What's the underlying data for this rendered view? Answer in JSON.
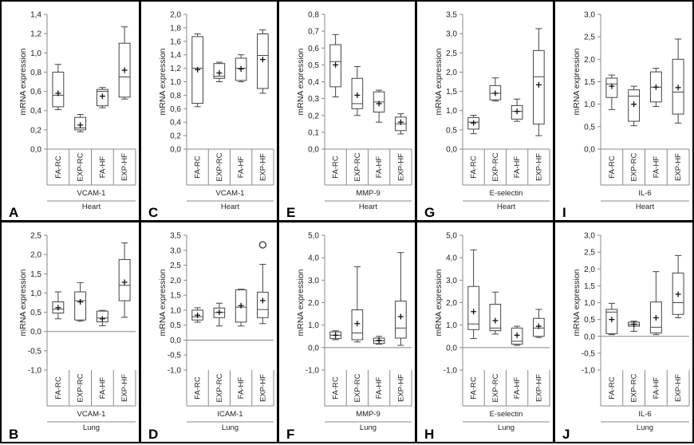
{
  "chart_data": [
    {
      "id": "A",
      "type": "boxplot",
      "letter": "A",
      "ylabel": "mRNA expression",
      "gene": "VCAM-1",
      "tissue": "Heart",
      "ylim": [
        0,
        1.4
      ],
      "yticks": [
        "0,0",
        "0,2",
        "0,4",
        "0,6",
        "0,8",
        "1,0",
        "1,2",
        "1,4"
      ],
      "ytick_values": [
        0,
        0.2,
        0.4,
        0.6,
        0.8,
        1.0,
        1.2,
        1.4
      ],
      "categories": [
        "FA-RC",
        "EXP-RC",
        "FA-HF",
        "EXP-HF"
      ],
      "boxes": [
        {
          "min": 0.41,
          "q1": 0.44,
          "median": 0.56,
          "q3": 0.8,
          "max": 0.88,
          "mean": 0.58,
          "outliers": []
        },
        {
          "min": 0.18,
          "q1": 0.2,
          "median": 0.22,
          "q3": 0.33,
          "max": 0.36,
          "mean": 0.25,
          "outliers": []
        },
        {
          "min": 0.43,
          "q1": 0.45,
          "median": 0.6,
          "q3": 0.62,
          "max": 0.64,
          "mean": 0.55,
          "outliers": []
        },
        {
          "min": 0.52,
          "q1": 0.54,
          "median": 0.75,
          "q3": 1.1,
          "max": 1.27,
          "mean": 0.82,
          "outliers": []
        }
      ]
    },
    {
      "id": "B",
      "type": "boxplot",
      "letter": "B",
      "ylabel": "mRNA expression",
      "gene": "VCAM-1",
      "tissue": "Lung",
      "ylim": [
        -1,
        2.5
      ],
      "yticks": [
        "-1,0",
        "-0,5",
        "0,0",
        "0,5",
        "1,0",
        "1,5",
        "2,0",
        "2,5"
      ],
      "ytick_values": [
        -1,
        -0.5,
        0,
        0.5,
        1,
        1.5,
        2,
        2.5
      ],
      "categories": [
        "FA-RC",
        "EXP-RC",
        "FA-HF",
        "EXP-HF"
      ],
      "boxes": [
        {
          "min": 0.33,
          "q1": 0.48,
          "median": 0.58,
          "q3": 0.77,
          "max": 1.03,
          "mean": 0.62,
          "outliers": []
        },
        {
          "min": 0.27,
          "q1": 0.3,
          "median": 0.8,
          "q3": 1.03,
          "max": 1.27,
          "mean": 0.77,
          "outliers": []
        },
        {
          "min": 0.15,
          "q1": 0.25,
          "median": 0.35,
          "q3": 0.53,
          "max": 0.55,
          "mean": 0.33,
          "outliers": []
        },
        {
          "min": 0.37,
          "q1": 0.8,
          "median": 1.2,
          "q3": 1.87,
          "max": 2.3,
          "mean": 1.28,
          "outliers": []
        }
      ]
    },
    {
      "id": "C",
      "type": "boxplot",
      "letter": "C",
      "ylabel": "mRNA expression",
      "gene": "VCAM-1",
      "tissue": "Heart",
      "ylim": [
        0,
        2.0
      ],
      "yticks": [
        "0,0",
        "0,2",
        "0,4",
        "0,6",
        "0,8",
        "1,0",
        "1,2",
        "1,4",
        "1,6",
        "1,8",
        "2,0"
      ],
      "ytick_values": [
        0,
        0.2,
        0.4,
        0.6,
        0.8,
        1.0,
        1.2,
        1.4,
        1.6,
        1.8,
        2.0
      ],
      "categories": [
        "FA-RC",
        "EXP-RC",
        "FA-HF",
        "EXP-HF"
      ],
      "boxes": [
        {
          "min": 0.63,
          "q1": 0.68,
          "median": 1.2,
          "q3": 1.67,
          "max": 1.71,
          "mean": 1.18,
          "outliers": []
        },
        {
          "min": 1.0,
          "q1": 1.05,
          "median": 1.08,
          "q3": 1.27,
          "max": 1.29,
          "mean": 1.13,
          "outliers": []
        },
        {
          "min": 1.0,
          "q1": 1.02,
          "median": 1.2,
          "q3": 1.35,
          "max": 1.4,
          "mean": 1.19,
          "outliers": []
        },
        {
          "min": 0.83,
          "q1": 0.9,
          "median": 1.39,
          "q3": 1.71,
          "max": 1.77,
          "mean": 1.33,
          "outliers": []
        }
      ]
    },
    {
      "id": "D",
      "type": "boxplot",
      "letter": "D",
      "ylabel": "mRNA expression",
      "gene": "ICAM-1",
      "tissue": "Lung",
      "ylim": [
        -1,
        3.5
      ],
      "yticks": [
        "-1,0",
        "-0,5",
        "0,0",
        "0,5",
        "1,0",
        "1,5",
        "2,0",
        "2,5",
        "3,0",
        "3,5"
      ],
      "ytick_values": [
        -1,
        -0.5,
        0,
        0.5,
        1,
        1.5,
        2,
        2.5,
        3,
        3.5
      ],
      "categories": [
        "FA-RC",
        "EXP-RC",
        "FA-HF",
        "EXP-HF"
      ],
      "boxes": [
        {
          "min": 0.6,
          "q1": 0.67,
          "median": 0.78,
          "q3": 1.0,
          "max": 1.08,
          "mean": 0.83,
          "outliers": []
        },
        {
          "min": 0.47,
          "q1": 0.75,
          "median": 0.92,
          "q3": 1.07,
          "max": 1.23,
          "mean": 0.93,
          "outliers": []
        },
        {
          "min": 0.47,
          "q1": 0.6,
          "median": 1.1,
          "q3": 1.68,
          "max": 1.7,
          "mean": 1.15,
          "outliers": []
        },
        {
          "min": 0.55,
          "q1": 0.75,
          "median": 1.02,
          "q3": 1.6,
          "max": 2.53,
          "mean": 1.32,
          "outliers": [
            3.18
          ]
        }
      ]
    },
    {
      "id": "E",
      "type": "boxplot",
      "letter": "E",
      "ylabel": "mRNA expression",
      "gene": "MMP-9",
      "tissue": "Heart",
      "ylim": [
        0,
        0.8
      ],
      "yticks": [
        "0,0",
        "0,1",
        "0,2",
        "0,3",
        "0,4",
        "0,5",
        "0,6",
        "0,7",
        "0,8"
      ],
      "ytick_values": [
        0,
        0.1,
        0.2,
        0.3,
        0.4,
        0.5,
        0.6,
        0.7,
        0.8
      ],
      "categories": [
        "FA-RC",
        "EXP-RC",
        "FA-HF",
        "EXP-HF"
      ],
      "boxes": [
        {
          "min": 0.31,
          "q1": 0.37,
          "median": 0.52,
          "q3": 0.62,
          "max": 0.68,
          "mean": 0.5,
          "outliers": []
        },
        {
          "min": 0.2,
          "q1": 0.24,
          "median": 0.27,
          "q3": 0.42,
          "max": 0.49,
          "mean": 0.32,
          "outliers": []
        },
        {
          "min": 0.16,
          "q1": 0.22,
          "median": 0.28,
          "q3": 0.34,
          "max": 0.35,
          "mean": 0.27,
          "outliers": []
        },
        {
          "min": 0.09,
          "q1": 0.11,
          "median": 0.15,
          "q3": 0.19,
          "max": 0.21,
          "mean": 0.16,
          "outliers": []
        }
      ]
    },
    {
      "id": "F",
      "type": "boxplot",
      "letter": "F",
      "ylabel": "mRNA expression",
      "gene": "MMP-9",
      "tissue": "Lung",
      "ylim": [
        -1,
        5
      ],
      "yticks": [
        "-1,0",
        "0,0",
        "1,0",
        "2,0",
        "3,0",
        "4,0",
        "5,0"
      ],
      "ytick_values": [
        -1,
        0,
        1,
        2,
        3,
        4,
        5
      ],
      "categories": [
        "FA-RC",
        "EXP-RC",
        "FA-HF",
        "EXP-HF"
      ],
      "boxes": [
        {
          "min": 0.35,
          "q1": 0.4,
          "median": 0.55,
          "q3": 0.7,
          "max": 0.75,
          "mean": 0.55,
          "outliers": []
        },
        {
          "min": 0.25,
          "q1": 0.35,
          "median": 0.65,
          "q3": 1.68,
          "max": 3.6,
          "mean": 1.07,
          "outliers": []
        },
        {
          "min": 0.15,
          "q1": 0.18,
          "median": 0.3,
          "q3": 0.42,
          "max": 0.5,
          "mean": 0.32,
          "outliers": []
        },
        {
          "min": 0.1,
          "q1": 0.42,
          "median": 0.87,
          "q3": 2.07,
          "max": 4.23,
          "mean": 1.38,
          "outliers": []
        }
      ]
    },
    {
      "id": "G",
      "type": "boxplot",
      "letter": "G",
      "ylabel": "mRNA expression",
      "gene": "E-selectin",
      "tissue": "Heart",
      "ylim": [
        0,
        3.5
      ],
      "yticks": [
        "0,0",
        "0,5",
        "1,0",
        "1,5",
        "2,0",
        "2,5",
        "3,0",
        "3,5"
      ],
      "ytick_values": [
        0,
        0.5,
        1,
        1.5,
        2,
        2.5,
        3,
        3.5
      ],
      "categories": [
        "FA-RC",
        "EXP-RC",
        "FA-HF",
        "EXP-HF"
      ],
      "boxes": [
        {
          "min": 0.4,
          "q1": 0.52,
          "median": 0.7,
          "q3": 0.82,
          "max": 0.88,
          "mean": 0.68,
          "outliers": []
        },
        {
          "min": 1.25,
          "q1": 1.28,
          "median": 1.45,
          "q3": 1.65,
          "max": 1.85,
          "mean": 1.45,
          "outliers": []
        },
        {
          "min": 0.72,
          "q1": 0.78,
          "median": 0.98,
          "q3": 1.13,
          "max": 1.3,
          "mean": 0.98,
          "outliers": []
        },
        {
          "min": 0.35,
          "q1": 0.65,
          "median": 1.88,
          "q3": 2.56,
          "max": 3.13,
          "mean": 1.67,
          "outliers": []
        }
      ]
    },
    {
      "id": "H",
      "type": "boxplot",
      "letter": "H",
      "ylabel": "mRNA expression",
      "gene": "E-selectin",
      "tissue": "Lung",
      "ylim": [
        -1,
        5
      ],
      "yticks": [
        "-1,0",
        "0,0",
        "1,0",
        "2,0",
        "3,0",
        "4,0",
        "5,0"
      ],
      "ytick_values": [
        -1,
        0,
        1,
        2,
        3,
        4,
        5
      ],
      "categories": [
        "FA-RC",
        "EXP-RC",
        "FA-HF",
        "EXP-HF"
      ],
      "boxes": [
        {
          "min": 0.4,
          "q1": 0.8,
          "median": 1.05,
          "q3": 2.72,
          "max": 4.35,
          "mean": 1.6,
          "outliers": []
        },
        {
          "min": 0.6,
          "q1": 0.75,
          "median": 0.87,
          "q3": 1.93,
          "max": 2.47,
          "mean": 1.2,
          "outliers": []
        },
        {
          "min": 0.1,
          "q1": 0.15,
          "median": 0.28,
          "q3": 0.87,
          "max": 0.95,
          "mean": 0.55,
          "outliers": []
        },
        {
          "min": 0.45,
          "q1": 0.5,
          "median": 0.87,
          "q3": 1.3,
          "max": 1.7,
          "mean": 0.95,
          "outliers": []
        }
      ]
    },
    {
      "id": "I",
      "type": "boxplot",
      "letter": "I",
      "ylabel": "mRNA expression",
      "gene": "IL-6",
      "tissue": "Heart",
      "ylim": [
        0,
        3.0
      ],
      "yticks": [
        "0,0",
        "0,5",
        "1,0",
        "1,5",
        "2,0",
        "2,5",
        "3,0"
      ],
      "ytick_values": [
        0,
        0.5,
        1,
        1.5,
        2,
        2.5,
        3
      ],
      "categories": [
        "FA-RC",
        "EXP-RC",
        "FA-HF",
        "EXP-HF"
      ],
      "boxes": [
        {
          "min": 0.88,
          "q1": 1.15,
          "median": 1.45,
          "q3": 1.58,
          "max": 1.65,
          "mean": 1.4,
          "outliers": []
        },
        {
          "min": 0.52,
          "q1": 0.62,
          "median": 1.18,
          "q3": 1.32,
          "max": 1.4,
          "mean": 1.0,
          "outliers": []
        },
        {
          "min": 0.95,
          "q1": 1.05,
          "median": 1.38,
          "q3": 1.72,
          "max": 1.8,
          "mean": 1.38,
          "outliers": []
        },
        {
          "min": 0.58,
          "q1": 0.78,
          "median": 1.27,
          "q3": 2.0,
          "max": 2.45,
          "mean": 1.37,
          "outliers": []
        }
      ]
    },
    {
      "id": "J",
      "type": "boxplot",
      "letter": "J",
      "ylabel": "mRNA expression",
      "gene": "IL-6",
      "tissue": "Lung",
      "ylim": [
        -1,
        3.0
      ],
      "yticks": [
        "-1,0",
        "-0,5",
        "0,0",
        "0,5",
        "1,0",
        "1,5",
        "2,0",
        "2,5",
        "3,0"
      ],
      "ytick_values": [
        -1,
        -0.5,
        0,
        0.5,
        1,
        1.5,
        2,
        2.5,
        3
      ],
      "categories": [
        "FA-RC",
        "EXP-RC",
        "FA-HF",
        "EXP-HF"
      ],
      "boxes": [
        {
          "min": 0.05,
          "q1": 0.08,
          "median": 0.72,
          "q3": 0.8,
          "max": 0.98,
          "mean": 0.5,
          "outliers": []
        },
        {
          "min": 0.15,
          "q1": 0.3,
          "median": 0.35,
          "q3": 0.42,
          "max": 0.45,
          "mean": 0.36,
          "outliers": []
        },
        {
          "min": 0.05,
          "q1": 0.1,
          "median": 0.27,
          "q3": 1.02,
          "max": 1.92,
          "mean": 0.55,
          "outliers": []
        },
        {
          "min": 0.55,
          "q1": 0.65,
          "median": 1.0,
          "q3": 1.88,
          "max": 2.4,
          "mean": 1.25,
          "outliers": []
        }
      ]
    }
  ]
}
